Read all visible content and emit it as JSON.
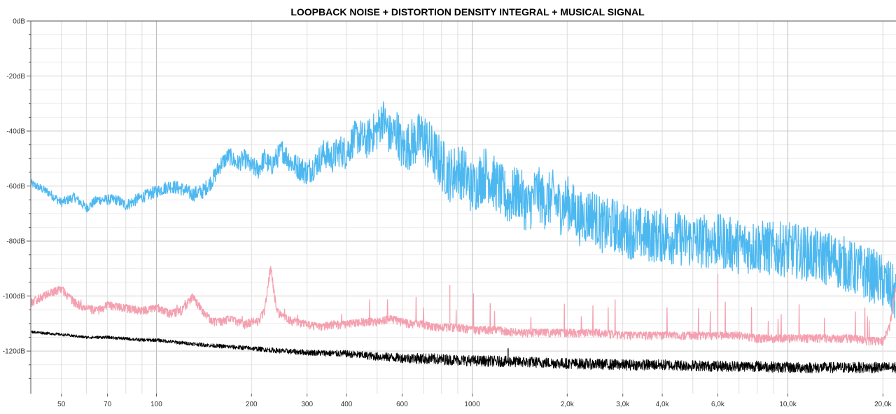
{
  "chart_data": {
    "type": "line",
    "title": "LOOPBACK NOISE + DISTORTION DENSITY INTEGRAL + MUSICAL SIGNAL",
    "xlabel": "",
    "ylabel": "",
    "xscale": "log",
    "xlim": [
      40,
      22000
    ],
    "ylim": [
      -130,
      0
    ],
    "y_ticks": [
      {
        "value": 0,
        "label": "0dB"
      },
      {
        "value": -20,
        "label": "-20dB"
      },
      {
        "value": -40,
        "label": "-40dB"
      },
      {
        "value": -60,
        "label": "-60dB"
      },
      {
        "value": -80,
        "label": "-80dB"
      },
      {
        "value": -100,
        "label": "-100dB"
      },
      {
        "value": -120,
        "label": "-120dB"
      }
    ],
    "x_ticks": [
      {
        "value": 50,
        "label": "50"
      },
      {
        "value": 70,
        "label": "70"
      },
      {
        "value": 100,
        "label": "100"
      },
      {
        "value": 200,
        "label": "200"
      },
      {
        "value": 300,
        "label": "300"
      },
      {
        "value": 400,
        "label": "400"
      },
      {
        "value": 600,
        "label": "600"
      },
      {
        "value": 1000,
        "label": "1000"
      },
      {
        "value": 2000,
        "label": "2,0k"
      },
      {
        "value": 3000,
        "label": "3,0k"
      },
      {
        "value": 4000,
        "label": "4,0k"
      },
      {
        "value": 6000,
        "label": "6,0k"
      },
      {
        "value": 10000,
        "label": "10,0k"
      },
      {
        "value": 20000,
        "label": "20,0k"
      }
    ],
    "series": [
      {
        "name": "musical signal",
        "color": "#4db8f0",
        "x": [
          40,
          45,
          50,
          55,
          60,
          65,
          70,
          75,
          80,
          90,
          100,
          110,
          120,
          130,
          140,
          150,
          160,
          170,
          180,
          190,
          200,
          210,
          220,
          230,
          250,
          270,
          290,
          300,
          320,
          340,
          360,
          380,
          400,
          420,
          440,
          460,
          480,
          500,
          520,
          550,
          580,
          600,
          650,
          700,
          750,
          800,
          850,
          900,
          950,
          1000,
          1100,
          1200,
          1300,
          1400,
          1500,
          1600,
          1700,
          1800,
          1900,
          2000,
          2200,
          2400,
          2600,
          2800,
          3000,
          3300,
          3600,
          4000,
          4500,
          5000,
          5500,
          6000,
          7000,
          8000,
          9000,
          10000,
          11000,
          12000,
          13000,
          14000,
          15000,
          16000,
          17000,
          18000,
          19000,
          20000,
          21000,
          22000
        ],
        "y": [
          -59,
          -62,
          -66,
          -64,
          -68,
          -65,
          -65,
          -65,
          -67,
          -64,
          -62,
          -60,
          -61,
          -63,
          -62,
          -58,
          -52,
          -49,
          -52,
          -50,
          -53,
          -54,
          -50,
          -53,
          -47,
          -52,
          -54,
          -55,
          -52,
          -48,
          -50,
          -47,
          -48,
          -43,
          -42,
          -44,
          -41,
          -40,
          -35,
          -42,
          -40,
          -47,
          -44,
          -42,
          -48,
          -52,
          -56,
          -54,
          -56,
          -61,
          -55,
          -60,
          -65,
          -62,
          -68,
          -62,
          -66,
          -64,
          -68,
          -66,
          -72,
          -70,
          -75,
          -74,
          -76,
          -77,
          -78,
          -78,
          -79,
          -80,
          -80,
          -80,
          -82,
          -82,
          -83,
          -83,
          -84,
          -85,
          -86,
          -87,
          -88,
          -90,
          -91,
          -92,
          -93,
          -95,
          -97,
          -100
        ]
      },
      {
        "name": "noise + distortion density",
        "color": "#f4a0b0",
        "x": [
          40,
          45,
          50,
          55,
          60,
          65,
          70,
          80,
          90,
          100,
          110,
          120,
          130,
          140,
          150,
          160,
          170,
          180,
          190,
          200,
          210,
          220,
          230,
          240,
          250,
          270,
          300,
          330,
          360,
          400,
          450,
          500,
          550,
          600,
          650,
          700,
          750,
          800,
          850,
          900,
          1000,
          1100,
          1200,
          1400,
          1600,
          1800,
          2000,
          2500,
          3000,
          3500,
          4000,
          5000,
          6000,
          7000,
          8000,
          10000,
          12000,
          14000,
          16000,
          18000,
          20000,
          21000,
          22000
        ],
        "y": [
          -101,
          -98,
          -96,
          -101,
          -103,
          -104,
          -102,
          -103,
          -104,
          -103,
          -105,
          -104,
          -99,
          -104,
          -108,
          -108,
          -107,
          -108,
          -109,
          -108,
          -108,
          -104,
          -88,
          -104,
          -106,
          -108,
          -109,
          -110,
          -109,
          -109,
          -108,
          -108,
          -107,
          -108,
          -109,
          -109,
          -110,
          -110,
          -110,
          -110,
          -111,
          -111,
          -111,
          -112,
          -112,
          -112,
          -112,
          -112,
          -113,
          -113,
          -113,
          -113,
          -113,
          -113,
          -114,
          -114,
          -114,
          -114,
          -114,
          -115,
          -115,
          -110,
          -95
        ]
      },
      {
        "name": "loopback noise",
        "color": "#000000",
        "x": [
          40,
          50,
          60,
          70,
          80,
          90,
          100,
          120,
          150,
          200,
          250,
          300,
          400,
          500,
          600,
          800,
          1000,
          1500,
          2000,
          3000,
          4000,
          6000,
          8000,
          10000,
          15000,
          20000,
          22000
        ],
        "y": [
          -113,
          -114,
          -115,
          -115,
          -115.5,
          -116,
          -116,
          -117,
          -118,
          -119,
          -120,
          -120.5,
          -121,
          -122,
          -122.5,
          -123,
          -123.5,
          -124,
          -124.5,
          -125,
          -125,
          -125.5,
          -125.5,
          -126,
          -126,
          -126,
          -126
        ]
      }
    ],
    "spikes": [
      {
        "series": "noise + distortion density",
        "x": 6000,
        "y": -92
      },
      {
        "series": "noise + distortion density",
        "x": 850,
        "y": -96
      },
      {
        "series": "loopback noise",
        "x": 1300,
        "y": -119
      }
    ]
  }
}
